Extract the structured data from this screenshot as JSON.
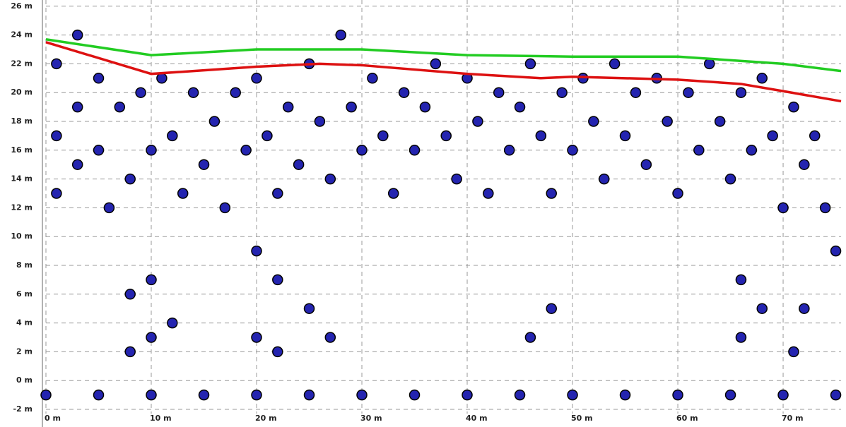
{
  "chart_data": {
    "type": "scatter",
    "xlim": [
      0,
      75.5
    ],
    "ylim": [
      -2,
      26
    ],
    "xticks": [
      {
        "value": 0,
        "label": "0 m"
      },
      {
        "value": 10,
        "label": "10 m"
      },
      {
        "value": 20,
        "label": "20 m"
      },
      {
        "value": 30,
        "label": "30 m"
      },
      {
        "value": 40,
        "label": "40 m"
      },
      {
        "value": 50,
        "label": "50 m"
      },
      {
        "value": 60,
        "label": "60 m"
      },
      {
        "value": 70,
        "label": "70 m"
      }
    ],
    "yticks": [
      {
        "value": -2,
        "label": "-2 m"
      },
      {
        "value": 0,
        "label": "0 m"
      },
      {
        "value": 2,
        "label": "2 m"
      },
      {
        "value": 4,
        "label": "4 m"
      },
      {
        "value": 6,
        "label": "6 m"
      },
      {
        "value": 8,
        "label": "8 m"
      },
      {
        "value": 10,
        "label": "10 m"
      },
      {
        "value": 12,
        "label": "12 m"
      },
      {
        "value": 14,
        "label": "14 m"
      },
      {
        "value": 16,
        "label": "16 m"
      },
      {
        "value": 18,
        "label": "18 m"
      },
      {
        "value": 20,
        "label": "20 m"
      },
      {
        "value": 22,
        "label": "22 m"
      },
      {
        "value": 24,
        "label": "24 m"
      },
      {
        "value": 26,
        "label": "26 m"
      }
    ],
    "grid": true,
    "series": [
      {
        "type": "scatter",
        "color": "#2424b0",
        "x": [
          1,
          1,
          1,
          3,
          3,
          3,
          5,
          5,
          6,
          7,
          8,
          9,
          10,
          11,
          12,
          13,
          14,
          15,
          16,
          17,
          18,
          19,
          20,
          21,
          22,
          23,
          24,
          25,
          26,
          27,
          28,
          29,
          30,
          31,
          32,
          33,
          34,
          35,
          36,
          37,
          38,
          39,
          40,
          41,
          42,
          43,
          44,
          45,
          46,
          47,
          48,
          49,
          50,
          51,
          52,
          53,
          54,
          55,
          56,
          57,
          58,
          59,
          60,
          61,
          62,
          63,
          64,
          65,
          66,
          67,
          68,
          69,
          70,
          71,
          72,
          73,
          74,
          75,
          8,
          8,
          10,
          10,
          12,
          20,
          20,
          22,
          22,
          25,
          27,
          46,
          48,
          66,
          66,
          68,
          71,
          72,
          0,
          5,
          10,
          15,
          20,
          25,
          30,
          35,
          40,
          45,
          50,
          55,
          60,
          65,
          70,
          75
        ],
        "values": [
          22,
          17,
          13,
          24,
          19,
          15,
          21,
          16,
          12,
          19,
          14,
          20,
          16,
          21,
          17,
          13,
          20,
          15,
          18,
          12,
          20,
          16,
          21,
          17,
          13,
          19,
          15,
          22,
          18,
          14,
          24,
          19,
          16,
          21,
          17,
          13,
          20,
          16,
          19,
          22,
          17,
          14,
          21,
          18,
          13,
          20,
          16,
          19,
          22,
          17,
          13,
          20,
          16,
          21,
          18,
          14,
          22,
          17,
          20,
          15,
          21,
          18,
          13,
          20,
          16,
          22,
          18,
          14,
          20,
          16,
          21,
          17,
          12,
          19,
          15,
          17,
          12,
          9,
          6,
          2,
          7,
          3,
          4,
          9,
          3,
          7,
          2,
          5,
          3,
          3,
          5,
          7,
          3,
          5,
          2,
          5,
          -1,
          -1,
          -1,
          -1,
          -1,
          -1,
          -1,
          -1,
          -1,
          -1,
          -1,
          -1,
          -1,
          -1,
          -1,
          -1
        ]
      },
      {
        "type": "line",
        "color": "#22cc22",
        "x": [
          0,
          10,
          20,
          30,
          40,
          50,
          60,
          70,
          75.5
        ],
        "values": [
          23.7,
          22.6,
          23.0,
          23.0,
          22.6,
          22.5,
          22.5,
          22.0,
          21.5
        ]
      },
      {
        "type": "line",
        "color": "#dd1111",
        "x": [
          0,
          10,
          20,
          26,
          30,
          40,
          47,
          50,
          60,
          66,
          70,
          75.5
        ],
        "values": [
          23.5,
          21.3,
          21.8,
          22.0,
          21.9,
          21.3,
          21.0,
          21.1,
          20.9,
          20.6,
          20.1,
          19.4
        ]
      }
    ]
  }
}
